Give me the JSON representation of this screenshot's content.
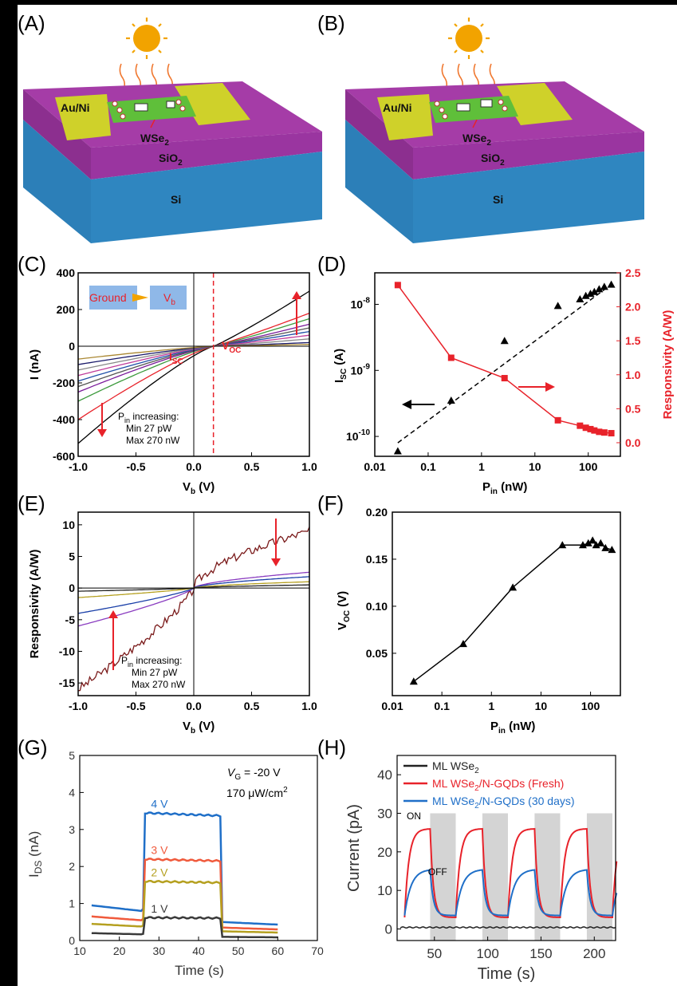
{
  "panel_labels": [
    "(A)",
    "(B)",
    "(C)",
    "(D)",
    "(E)",
    "(F)",
    "(G)",
    "(H)"
  ],
  "device": {
    "electrode": "Au/Ni",
    "channel_pre": "WSe",
    "channel_sub": "2",
    "oxide_pre": "SiO",
    "oxide_sub": "2",
    "substrate": "Si"
  },
  "colors": {
    "top": "#a53ca7",
    "front": "#8c2f8f",
    "si_front": "#2c7fb8",
    "si_side": "#1f5e8c",
    "gold": "#cfd12a",
    "flake": "#5fbf3a",
    "sun": "#f2a300",
    "black": "#000000",
    "red": "#e8222a",
    "blue": "#1f6fc8",
    "grey": "#3a3a3a",
    "orange": "#f05a3c",
    "olive": "#b5a020",
    "navy": "#1a3fa8",
    "purple": "#8a3cc0",
    "darkred": "#7a1a1a"
  },
  "chart_data": [
    {
      "id": "C",
      "type": "line",
      "xlabel": "V_b (V)",
      "ylabel": "I (nA)",
      "xlim": [
        -1.0,
        1.0
      ],
      "ylim": [
        -600,
        400
      ],
      "xticks": [
        "-1.0",
        "-0.5",
        "0.0",
        "0.5",
        "1.0"
      ],
      "yticks": [
        "-600",
        "-400",
        "-200",
        "0",
        "200",
        "400"
      ],
      "series": [
        {
          "values_at_minus1": -530,
          "values_at_plus1": 300
        },
        {
          "values_at_minus1": -400,
          "values_at_plus1": 180
        },
        {
          "values_at_minus1": -300,
          "values_at_plus1": 150
        },
        {
          "values_at_minus1": -250,
          "values_at_plus1": 120
        },
        {
          "values_at_minus1": -220,
          "values_at_plus1": 100
        },
        {
          "values_at_minus1": -190,
          "values_at_plus1": 80
        },
        {
          "values_at_minus1": -160,
          "values_at_plus1": 60
        },
        {
          "values_at_minus1": -130,
          "values_at_plus1": 40
        },
        {
          "values_at_minus1": -100,
          "values_at_plus1": 20
        },
        {
          "values_at_minus1": -70,
          "values_at_plus1": 10
        }
      ],
      "voc_x": 0.17,
      "inset_ground": "Ground",
      "inset_vb": "V",
      "inset_vb_sub": "b",
      "isc_label": "I",
      "isc_sub": "SC",
      "voc_label": "V",
      "voc_sub": "OC",
      "note_l1_pre": "P",
      "note_l1_sub": "in",
      "note_l1_post": " increasing:",
      "note_l2": "Min 27 pW",
      "note_l3": "Max 270 nW"
    },
    {
      "id": "D",
      "type": "scatter",
      "xlabel": "P_in (nW)",
      "ylabel": "I_SC (A)",
      "y2label": "Responsivity (A/W)",
      "xscale": "log",
      "xlim": [
        0.01,
        400
      ],
      "xticks": [
        "0.01",
        "0.1",
        "1",
        "10",
        "100"
      ],
      "yscale": "log",
      "ylim": [
        5e-11,
        3e-08
      ],
      "yticks": [
        "10^-10",
        "10^-9",
        "10^-8"
      ],
      "y2lim": [
        -0.2,
        2.5
      ],
      "y2ticks": [
        "0.0",
        "0.5",
        "1.0",
        "1.5",
        "2.0",
        "2.5"
      ],
      "isc": {
        "x": [
          0.027,
          0.27,
          2.7,
          27,
          70,
          90,
          110,
          130,
          160,
          200,
          270
        ],
        "y": [
          6e-11,
          3.5e-10,
          2.8e-09,
          9.5e-09,
          1.2e-08,
          1.35e-08,
          1.45e-08,
          1.55e-08,
          1.7e-08,
          1.85e-08,
          2e-08
        ]
      },
      "fit_x": [
        0.027,
        270
      ],
      "fit_y": [
        8e-11,
        2e-08
      ],
      "responsivity": {
        "x": [
          0.027,
          0.27,
          2.7,
          27,
          70,
          90,
          110,
          130,
          160,
          200,
          270
        ],
        "y": [
          2.32,
          1.25,
          0.95,
          0.33,
          0.25,
          0.22,
          0.2,
          0.18,
          0.16,
          0.15,
          0.14
        ]
      }
    },
    {
      "id": "E",
      "type": "line",
      "xlabel": "V_b (V)",
      "ylabel": "Responsivity (A/W)",
      "xlim": [
        -1.0,
        1.0
      ],
      "ylim": [
        -17,
        12
      ],
      "xticks": [
        "-1.0",
        "-0.5",
        "0.0",
        "0.5",
        "1.0"
      ],
      "yticks": [
        "-15",
        "-10",
        "-5",
        "0",
        "5",
        "10"
      ],
      "series": [
        {
          "at_minus1": -16,
          "at_plus1": 9
        },
        {
          "at_minus1": -6,
          "at_plus1": 2.5
        },
        {
          "at_minus1": -4,
          "at_plus1": 1.8
        },
        {
          "at_minus1": -1.5,
          "at_plus1": 1.0
        },
        {
          "at_minus1": -0.5,
          "at_plus1": 0.5
        }
      ],
      "note_l1_pre": "P",
      "note_l1_sub": "in",
      "note_l1_post": " increasing:",
      "note_l2": "Min 27 pW",
      "note_l3": "Max 270 nW"
    },
    {
      "id": "F",
      "type": "line",
      "xlabel": "P_in (nW)",
      "ylabel": "V_OC (V)",
      "xscale": "log",
      "xlim": [
        0.01,
        400
      ],
      "xticks": [
        "0.01",
        "0.1",
        "1",
        "10",
        "100"
      ],
      "ylim": [
        0.005,
        0.2
      ],
      "yticks": [
        "0.05",
        "0.10",
        "0.15",
        "0.20"
      ],
      "x": [
        0.027,
        0.27,
        2.7,
        27,
        70,
        90,
        110,
        130,
        160,
        200,
        270
      ],
      "y": [
        0.02,
        0.06,
        0.12,
        0.165,
        0.165,
        0.167,
        0.17,
        0.165,
        0.167,
        0.162,
        0.16
      ]
    },
    {
      "id": "G",
      "type": "line",
      "xlabel": "Time (s)",
      "ylabel": "I_DS (nA)",
      "xlim": [
        10,
        70
      ],
      "ylim": [
        0,
        5
      ],
      "xticks": [
        "10",
        "20",
        "30",
        "40",
        "50",
        "60",
        "70"
      ],
      "yticks": [
        "0",
        "1",
        "2",
        "3",
        "4",
        "5"
      ],
      "annot_vg": "V",
      "annot_vg_sub": "G",
      "annot_vg_val": " = -20 V",
      "annot_int": "170 μW/cm",
      "annot_int_sup": "2",
      "series": [
        {
          "name": "4 V",
          "off": 0.95,
          "on": 3.45,
          "off2": 0.5
        },
        {
          "name": "3 V",
          "off": 0.65,
          "on": 2.2,
          "off2": 0.35
        },
        {
          "name": "2 V",
          "off": 0.45,
          "on": 1.6,
          "off2": 0.25
        },
        {
          "name": "1 V",
          "off": 0.2,
          "on": 0.62,
          "off2": 0.1
        }
      ]
    },
    {
      "id": "H",
      "type": "line",
      "xlabel": "Time (s)",
      "ylabel": "Current (pA)",
      "xlim": [
        15,
        220
      ],
      "ylim": [
        -3,
        45
      ],
      "xticks": [
        "50",
        "100",
        "150",
        "200"
      ],
      "yticks": [
        "0",
        "10",
        "20",
        "30",
        "40"
      ],
      "on_label": "ON",
      "off_label": "OFF",
      "off_windows": [
        [
          43,
          68
        ],
        [
          92,
          117
        ],
        [
          141,
          166
        ],
        [
          190,
          215
        ]
      ],
      "off_windows_extra": [
        [
          48,
          72
        ]
      ],
      "legend": [
        {
          "pre": "ML WSe",
          "sub": "2",
          "post": ""
        },
        {
          "pre": "ML WSe",
          "sub": "2",
          "post": "/N-GQDs (Fresh)"
        },
        {
          "pre": "ML WSe",
          "sub": "2",
          "post": "/N-GQDs (30 days)"
        }
      ]
    }
  ]
}
